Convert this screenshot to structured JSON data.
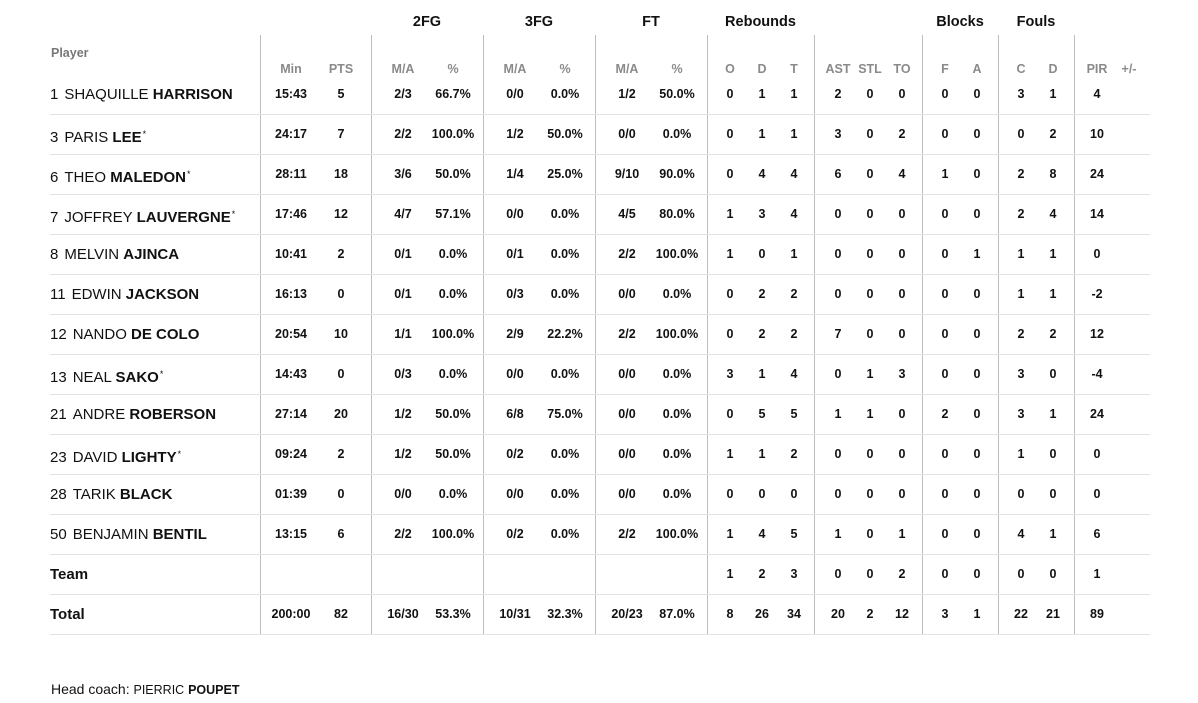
{
  "headers": {
    "player": "Player",
    "groups": [
      "2FG",
      "3FG",
      "FT",
      "Rebounds",
      "Blocks",
      "Fouls"
    ],
    "columns": [
      "Min",
      "PTS",
      "M/A",
      "%",
      "M/A",
      "%",
      "M/A",
      "%",
      "O",
      "D",
      "T",
      "AST",
      "STL",
      "TO",
      "F",
      "A",
      "C",
      "D",
      "PIR",
      "+/-"
    ]
  },
  "players": [
    {
      "num": "1",
      "first": "SHAQUILLE",
      "last": "HARRISON",
      "starter": false,
      "stats": [
        "15:43",
        "5",
        "2/3",
        "66.7%",
        "0/0",
        "0.0%",
        "1/2",
        "50.0%",
        "0",
        "1",
        "1",
        "2",
        "0",
        "0",
        "0",
        "0",
        "3",
        "1",
        "4",
        ""
      ]
    },
    {
      "num": "3",
      "first": "PARIS",
      "last": "LEE",
      "starter": true,
      "stats": [
        "24:17",
        "7",
        "2/2",
        "100.0%",
        "1/2",
        "50.0%",
        "0/0",
        "0.0%",
        "0",
        "1",
        "1",
        "3",
        "0",
        "2",
        "0",
        "0",
        "0",
        "2",
        "10",
        ""
      ]
    },
    {
      "num": "6",
      "first": "THEO",
      "last": "MALEDON",
      "starter": true,
      "stats": [
        "28:11",
        "18",
        "3/6",
        "50.0%",
        "1/4",
        "25.0%",
        "9/10",
        "90.0%",
        "0",
        "4",
        "4",
        "6",
        "0",
        "4",
        "1",
        "0",
        "2",
        "8",
        "24",
        ""
      ]
    },
    {
      "num": "7",
      "first": "JOFFREY",
      "last": "LAUVERGNE",
      "starter": true,
      "stats": [
        "17:46",
        "12",
        "4/7",
        "57.1%",
        "0/0",
        "0.0%",
        "4/5",
        "80.0%",
        "1",
        "3",
        "4",
        "0",
        "0",
        "0",
        "0",
        "0",
        "2",
        "4",
        "14",
        ""
      ]
    },
    {
      "num": "8",
      "first": "MELVIN",
      "last": "AJINCA",
      "starter": false,
      "stats": [
        "10:41",
        "2",
        "0/1",
        "0.0%",
        "0/1",
        "0.0%",
        "2/2",
        "100.0%",
        "1",
        "0",
        "1",
        "0",
        "0",
        "0",
        "0",
        "1",
        "1",
        "1",
        "0",
        ""
      ]
    },
    {
      "num": "11",
      "first": "EDWIN",
      "last": "JACKSON",
      "starter": false,
      "stats": [
        "16:13",
        "0",
        "0/1",
        "0.0%",
        "0/3",
        "0.0%",
        "0/0",
        "0.0%",
        "0",
        "2",
        "2",
        "0",
        "0",
        "0",
        "0",
        "0",
        "1",
        "1",
        "-2",
        ""
      ]
    },
    {
      "num": "12",
      "first": "NANDO",
      "last": "DE COLO",
      "starter": false,
      "stats": [
        "20:54",
        "10",
        "1/1",
        "100.0%",
        "2/9",
        "22.2%",
        "2/2",
        "100.0%",
        "0",
        "2",
        "2",
        "7",
        "0",
        "0",
        "0",
        "0",
        "2",
        "2",
        "12",
        ""
      ]
    },
    {
      "num": "13",
      "first": "NEAL",
      "last": "SAKO",
      "starter": true,
      "stats": [
        "14:43",
        "0",
        "0/3",
        "0.0%",
        "0/0",
        "0.0%",
        "0/0",
        "0.0%",
        "3",
        "1",
        "4",
        "0",
        "1",
        "3",
        "0",
        "0",
        "3",
        "0",
        "-4",
        ""
      ]
    },
    {
      "num": "21",
      "first": "ANDRE",
      "last": "ROBERSON",
      "starter": false,
      "stats": [
        "27:14",
        "20",
        "1/2",
        "50.0%",
        "6/8",
        "75.0%",
        "0/0",
        "0.0%",
        "0",
        "5",
        "5",
        "1",
        "1",
        "0",
        "2",
        "0",
        "3",
        "1",
        "24",
        ""
      ]
    },
    {
      "num": "23",
      "first": "DAVID",
      "last": "LIGHTY",
      "starter": true,
      "stats": [
        "09:24",
        "2",
        "1/2",
        "50.0%",
        "0/2",
        "0.0%",
        "0/0",
        "0.0%",
        "1",
        "1",
        "2",
        "0",
        "0",
        "0",
        "0",
        "0",
        "1",
        "0",
        "0",
        ""
      ]
    },
    {
      "num": "28",
      "first": "TARIK",
      "last": "BLACK",
      "starter": false,
      "stats": [
        "01:39",
        "0",
        "0/0",
        "0.0%",
        "0/0",
        "0.0%",
        "0/0",
        "0.0%",
        "0",
        "0",
        "0",
        "0",
        "0",
        "0",
        "0",
        "0",
        "0",
        "0",
        "0",
        ""
      ]
    },
    {
      "num": "50",
      "first": "BENJAMIN",
      "last": "BENTIL",
      "starter": false,
      "stats": [
        "13:15",
        "6",
        "2/2",
        "100.0%",
        "0/2",
        "0.0%",
        "2/2",
        "100.0%",
        "1",
        "4",
        "5",
        "1",
        "0",
        "1",
        "0",
        "0",
        "4",
        "1",
        "6",
        ""
      ]
    }
  ],
  "team_row": {
    "label": "Team",
    "stats": [
      "",
      "",
      "",
      "",
      "",
      "",
      "",
      "",
      "1",
      "2",
      "3",
      "0",
      "0",
      "2",
      "0",
      "0",
      "0",
      "0",
      "1",
      ""
    ]
  },
  "total_row": {
    "label": "Total",
    "stats": [
      "200:00",
      "82",
      "16/30",
      "53.3%",
      "10/31",
      "32.3%",
      "20/23",
      "87.0%",
      "8",
      "26",
      "34",
      "20",
      "2",
      "12",
      "3",
      "1",
      "22",
      "21",
      "89",
      ""
    ]
  },
  "coach": {
    "prefix": "Head coach: ",
    "first": "PIERRIC",
    "last": "POUPET"
  },
  "starter_mark": "*"
}
